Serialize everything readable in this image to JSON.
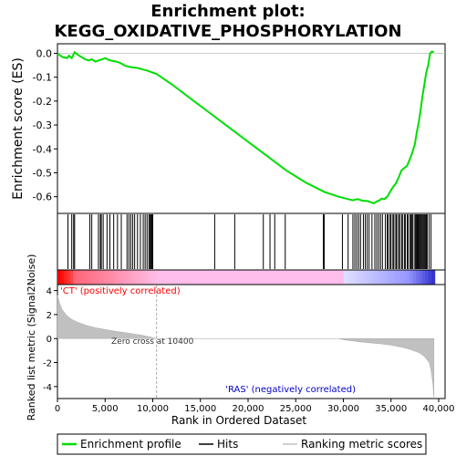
{
  "chart_data": {
    "type": "line",
    "title": "Enrichment plot:\nKEGG_OXIDATIVE_PHOSPHORYLATION",
    "panels": {
      "enrichment": {
        "ylabel": "Enrichment score (ES)",
        "ylim": [
          -0.67,
          0.04
        ],
        "yticks": [
          0.0,
          -0.1,
          -0.2,
          -0.3,
          -0.4,
          -0.5,
          -0.6
        ],
        "ytick_labels": [
          "0.0",
          "-0.1",
          "-0.2",
          "-0.3",
          "-0.4",
          "-0.5",
          "-0.6"
        ],
        "line_color": "#00dd00",
        "series": [
          {
            "x": [
              0,
              500,
              1000,
              1200,
              1500,
              1800,
              2100,
              2500,
              2900,
              3300,
              3600,
              4000,
              4300,
              4700,
              5000,
              5400,
              5800,
              6200,
              6600,
              7000,
              7400,
              7800,
              8200,
              8600,
              9000,
              9400,
              9800,
              10100,
              10400,
              12000,
              14000,
              16000,
              18000,
              20000,
              22000,
              24000,
              26000,
              28000,
              29500,
              30500,
              31000,
              31500,
              32000,
              32500,
              33000,
              33200,
              33500,
              33800,
              34000,
              34300,
              34600,
              34900,
              35200,
              35500,
              35800,
              36100,
              36400,
              36700,
              36900,
              37200,
              37500,
              37700,
              37900,
              38100,
              38300,
              38500,
              38700,
              38900,
              39100,
              39300,
              39500
            ],
            "y": [
              0.0,
              -0.015,
              -0.02,
              -0.01,
              -0.02,
              0.005,
              -0.005,
              -0.015,
              -0.025,
              -0.03,
              -0.025,
              -0.035,
              -0.03,
              -0.025,
              -0.02,
              -0.028,
              -0.032,
              -0.035,
              -0.04,
              -0.05,
              -0.055,
              -0.058,
              -0.06,
              -0.063,
              -0.068,
              -0.072,
              -0.078,
              -0.082,
              -0.086,
              -0.13,
              -0.19,
              -0.25,
              -0.31,
              -0.37,
              -0.43,
              -0.49,
              -0.54,
              -0.58,
              -0.6,
              -0.61,
              -0.615,
              -0.61,
              -0.617,
              -0.618,
              -0.625,
              -0.628,
              -0.62,
              -0.615,
              -0.608,
              -0.61,
              -0.6,
              -0.58,
              -0.56,
              -0.545,
              -0.52,
              -0.49,
              -0.48,
              -0.47,
              -0.45,
              -0.42,
              -0.38,
              -0.33,
              -0.29,
              -0.24,
              -0.18,
              -0.13,
              -0.08,
              -0.05,
              0.0,
              0.008,
              0.004
            ]
          }
        ]
      },
      "hits": {
        "label": "Hits",
        "positions": [
          1100,
          1500,
          1700,
          1800,
          3400,
          3600,
          4300,
          4500,
          4600,
          4800,
          5200,
          5500,
          5900,
          6300,
          6700,
          7300,
          7500,
          7700,
          7900,
          8100,
          8400,
          8700,
          9000,
          9200,
          9400,
          9600,
          9700,
          9800,
          9900,
          10000,
          16500,
          18600,
          21600,
          22300,
          22800,
          23900,
          27900,
          28000,
          29900,
          30500,
          31000,
          31200,
          31400,
          31600,
          31800,
          32100,
          32300,
          32500,
          32700,
          33000,
          33300,
          33500,
          33700,
          33900,
          34100,
          34400,
          34600,
          34700,
          34900,
          35000,
          35200,
          35300,
          35500,
          35600,
          35800,
          35900,
          36100,
          36200,
          36400,
          36500,
          36700,
          36800,
          37000,
          37100,
          37200,
          37300,
          37500,
          37600,
          37700,
          37800,
          37900,
          38000,
          38100,
          38200,
          38300,
          38400,
          38500,
          38600,
          38700,
          38800,
          39000,
          39200
        ]
      },
      "rank_heatmap": {
        "positive_color": "#ff0000",
        "negative_color": "#0000ff"
      },
      "ranked_metric": {
        "ylabel": "Ranked list metric (Signal2Noise)",
        "xlabel": "Rank in Ordered Dataset",
        "ylim": [
          -5,
          4.5
        ],
        "yticks": [
          4,
          2,
          0,
          -2,
          -4
        ],
        "ytick_labels": [
          "4",
          "2",
          "0",
          "-2",
          "-4"
        ],
        "xlim": [
          0,
          40000
        ],
        "xticks": [
          0,
          5000,
          10000,
          15000,
          20000,
          25000,
          30000,
          35000,
          40000
        ],
        "xtick_labels": [
          "0",
          "5,000",
          "10,000",
          "15,000",
          "20,000",
          "25,000",
          "30,000",
          "35,000",
          "40,000"
        ],
        "zero_cross": 10400,
        "zero_cross_label": "Zero cross at 10400",
        "positive_label": "'CT' (positively correlated)",
        "negative_label": "'RAS' (negatively correlated)",
        "positive_label_color": "#ff0000",
        "negative_label_color": "#0000cc",
        "fill_color": "#c0c0c0",
        "x": [
          0,
          200,
          500,
          1000,
          1500,
          2000,
          3000,
          4000,
          5000,
          6000,
          7000,
          8000,
          9000,
          10000,
          10400,
          12000,
          15000,
          20000,
          25000,
          29500,
          30000,
          32000,
          34000,
          35000,
          36000,
          37000,
          38000,
          38500,
          39000,
          39200,
          39400,
          39500
        ],
        "y": [
          3.6,
          3.0,
          2.4,
          1.9,
          1.6,
          1.4,
          1.1,
          0.9,
          0.75,
          0.62,
          0.5,
          0.38,
          0.25,
          0.08,
          0.0,
          0.0,
          0.0,
          0.0,
          0.0,
          0.0,
          -0.1,
          -0.3,
          -0.45,
          -0.55,
          -0.7,
          -0.9,
          -1.2,
          -1.5,
          -2.0,
          -2.6,
          -3.8,
          -5.0
        ]
      }
    },
    "xlabel": "Rank in Ordered Dataset",
    "xlim": [
      0,
      40000
    ],
    "legend": {
      "placement": "bottom",
      "entries": [
        {
          "name": "Enrichment profile",
          "color": "#00dd00"
        },
        {
          "name": "Hits",
          "color": "#000000"
        },
        {
          "name": "Ranking metric scores",
          "color": "#c0c0c0"
        }
      ]
    }
  }
}
